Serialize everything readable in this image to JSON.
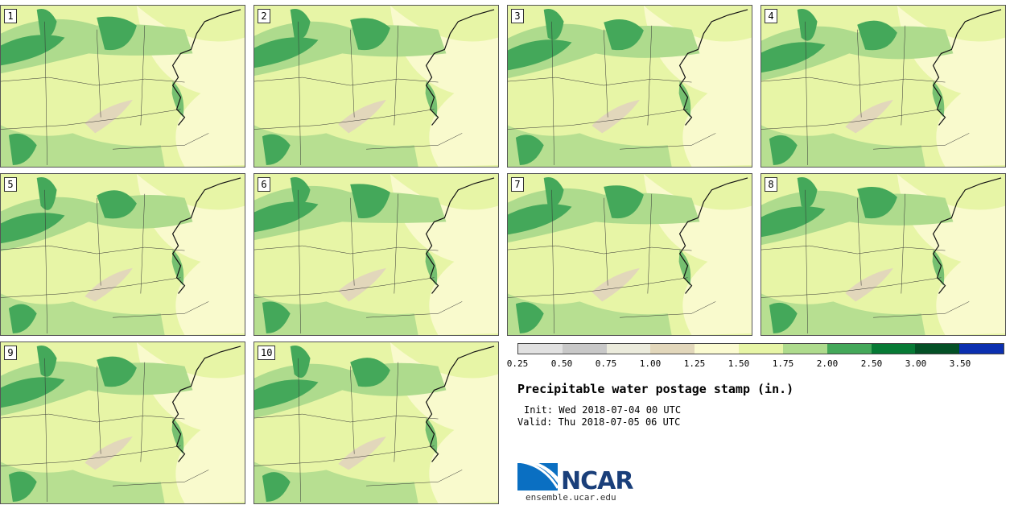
{
  "panels": [
    {
      "label": "1"
    },
    {
      "label": "2"
    },
    {
      "label": "3"
    },
    {
      "label": "4"
    },
    {
      "label": "5"
    },
    {
      "label": "6"
    },
    {
      "label": "7"
    },
    {
      "label": "8"
    },
    {
      "label": "9"
    },
    {
      "label": "10"
    }
  ],
  "legend": {
    "colors": [
      "#e1e1e1",
      "#c8c8c8",
      "#ebebdc",
      "#e2d7bb",
      "#fbfbd1",
      "#e7f5a6",
      "#aedb8d",
      "#44a85a",
      "#077a35",
      "#045026",
      "#0b2fb0"
    ],
    "ticks": [
      "0.25",
      "0.50",
      "0.75",
      "1.00",
      "1.25",
      "1.50",
      "1.75",
      "2.00",
      "2.50",
      "3.00",
      "3.50"
    ]
  },
  "title": "Precipitable water postage stamp (in.)",
  "init": "Init: Wed 2018-07-04 00 UTC",
  "valid": "Valid: Thu 2018-07-05 06 UTC",
  "logo": {
    "name": "NCAR",
    "url": "ensemble.ucar.edu"
  }
}
